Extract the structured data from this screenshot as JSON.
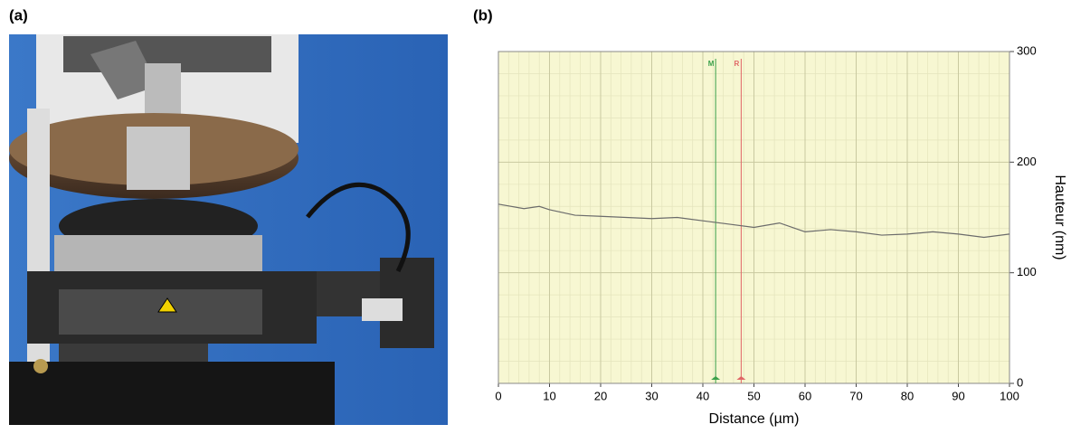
{
  "panels": {
    "a": "(a)",
    "b": "(b)"
  },
  "chart_data": {
    "type": "line",
    "xlabel": "Distance (µm)",
    "ylabel": "Hauteur (nm)",
    "x": [
      0,
      5,
      8,
      10,
      15,
      20,
      25,
      30,
      35,
      40,
      45,
      50,
      55,
      60,
      65,
      70,
      75,
      80,
      85,
      90,
      95,
      100
    ],
    "values": [
      162,
      158,
      160,
      157,
      152,
      151,
      150,
      149,
      150,
      147,
      144,
      141,
      145,
      137,
      139,
      137,
      134,
      135,
      137,
      135,
      132,
      135
    ],
    "color": "#6b6b6b",
    "xlim": [
      0,
      100
    ],
    "xticks": [
      0,
      10,
      20,
      30,
      40,
      50,
      60,
      70,
      80,
      90,
      100
    ],
    "ylim": [
      0,
      300
    ],
    "yticks": [
      0,
      100,
      200,
      300
    ],
    "grid": true,
    "minor_grid": true,
    "background": "#f7f7d2",
    "cursors": [
      {
        "label": "M",
        "x": 42.5,
        "color": "#3aa04a"
      },
      {
        "label": "R",
        "x": 47.5,
        "color": "#e06666"
      }
    ]
  }
}
